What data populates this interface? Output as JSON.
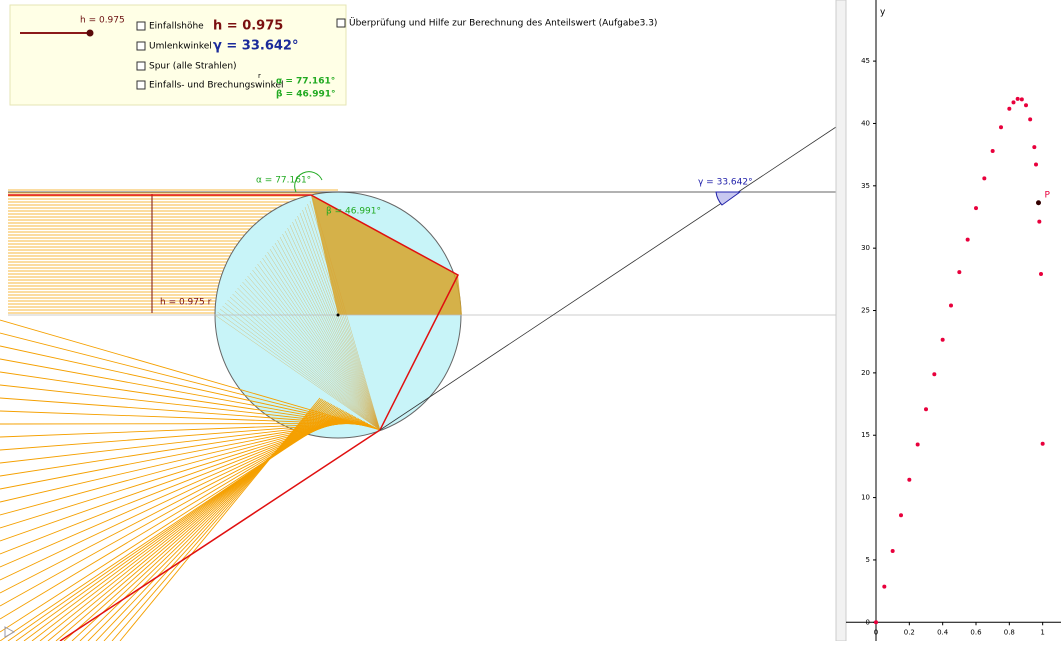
{
  "controls": {
    "slider_label": "h = 0.975",
    "checkboxes": [
      {
        "label": "Einfallshöhe",
        "value_text": "h = 0.975"
      },
      {
        "label": "Umlenkwinkel",
        "value_text": "γ = 33.642°"
      },
      {
        "label": "Spur (alle Strahlen)"
      },
      {
        "label": "Einfalls- und Brechungswinkel",
        "r_text": "r",
        "alpha_text": "α = 77.161°",
        "beta_text": "β = 46.991°"
      }
    ],
    "check_help": "Überprüfung und Hilfe zur Berechnung des Anteilswert (Aufgabe3.3)"
  },
  "geometry": {
    "alpha_label": "α = 77.161°",
    "beta_label": "β = 46.991°",
    "gamma_label": "γ = 33.642°",
    "h_label": "h = 0.975 r"
  },
  "chart_data": {
    "type": "scatter",
    "y_label": "y",
    "color": "#e8003c",
    "x": [
      0,
      0.05,
      0.1,
      0.15,
      0.2,
      0.25,
      0.3,
      0.35,
      0.4,
      0.45,
      0.5,
      0.55,
      0.6,
      0.65,
      0.7,
      0.75,
      0.8,
      0.825,
      0.85,
      0.875,
      0.9,
      0.925,
      0.95,
      0.96,
      0.98,
      0.99,
      1
    ],
    "values": [
      0,
      2.86,
      5.72,
      8.58,
      11.43,
      14.26,
      17.08,
      19.89,
      22.66,
      25.4,
      28.08,
      30.69,
      33.21,
      35.6,
      37.79,
      39.7,
      41.18,
      41.69,
      41.97,
      41.93,
      41.46,
      40.33,
      38.1,
      36.71,
      32.13,
      27.93,
      14.32
    ],
    "annotations": [
      {
        "text": "P",
        "x": 0.975,
        "y": 33.642
      }
    ],
    "xlim": [
      -0.18,
      1.11
    ],
    "ylim": [
      -1.5,
      49.9
    ],
    "xticks": [
      0,
      0.2,
      0.4,
      0.6,
      0.8,
      1
    ],
    "yticks": [
      0,
      5,
      10,
      15,
      20,
      25,
      30,
      35,
      40,
      45
    ]
  }
}
